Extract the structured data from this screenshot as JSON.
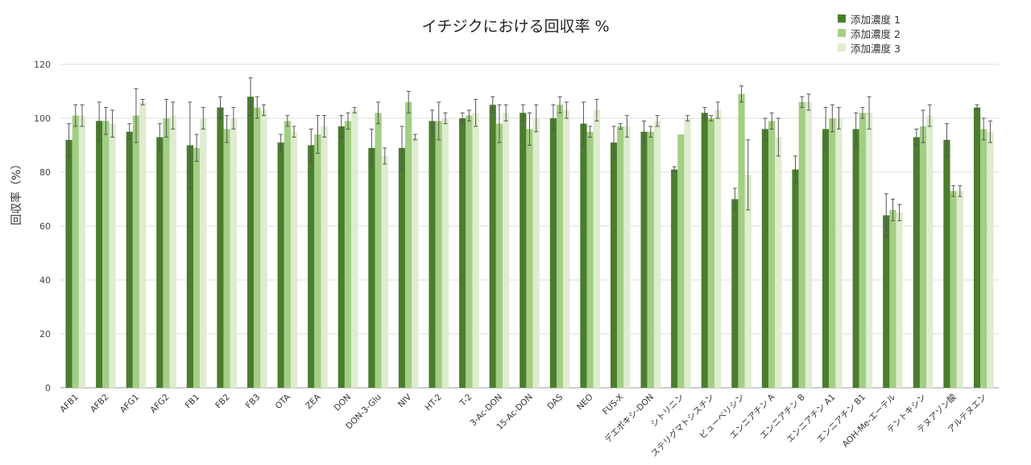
{
  "colors": {
    "series1": "#4a7d2e",
    "series2": "#a3cf84",
    "series3": "#dfeccf",
    "grid": "#dcdcdc",
    "axis": "#9a9a9a",
    "error": "#555555"
  },
  "chart_data": {
    "type": "bar",
    "title": "イチジクにおける回収率 %",
    "ylabel": "回収率（%）",
    "xlabel": "",
    "ylim": [
      0,
      120
    ],
    "yticks": [
      0,
      20,
      40,
      60,
      80,
      100,
      120
    ],
    "grid": true,
    "legend_position": "top-right",
    "categories": [
      "AFB1",
      "AFB2",
      "AFG1",
      "AFG2",
      "FB1",
      "FB2",
      "FB3",
      "OTA",
      "ZEA",
      "DON",
      "DON-3-Glu",
      "NIV",
      "HT-2",
      "T-2",
      "3-Ac-DON",
      "15-Ac-DON",
      "DAS",
      "NEO",
      "FUS-X",
      "デエポキシ-DON",
      "シトリニン",
      "ステリグマトシスチン",
      "ビューベリシン",
      "エンニアチン A",
      "エンニアチン B",
      "エンニアチン A1",
      "エンニアチン B1",
      "AOH-Me-エーテル",
      "テントキシン",
      "テヌアゾン酸",
      "アルテヌエン"
    ],
    "series": [
      {
        "name": "添加濃度 1",
        "values": [
          92,
          99,
          95,
          93,
          90,
          104,
          108,
          91,
          90,
          97,
          89,
          89,
          99,
          100,
          105,
          102,
          100,
          98,
          91,
          95,
          81,
          102,
          70,
          96,
          81,
          96,
          96,
          64,
          93,
          92,
          104
        ],
        "errors": [
          6,
          7,
          3,
          5,
          16,
          4,
          7,
          3,
          6,
          4,
          7,
          8,
          4,
          2,
          3,
          3,
          5,
          8,
          6,
          4,
          1,
          2,
          4,
          4,
          5,
          8,
          6,
          8,
          3,
          6,
          1
        ]
      },
      {
        "name": "添加濃度 2",
        "values": [
          101,
          99,
          101,
          100,
          89,
          96,
          104,
          99,
          94,
          99,
          102,
          106,
          99,
          101,
          98,
          96,
          105,
          95,
          97,
          95,
          94,
          100,
          109,
          99,
          106,
          100,
          102,
          66,
          97,
          73,
          96
        ],
        "errors": [
          4,
          5,
          10,
          7,
          5,
          5,
          4,
          2,
          7,
          3,
          4,
          4,
          7,
          2,
          7,
          6,
          3,
          2,
          1,
          2,
          0,
          1,
          3,
          3,
          2,
          5,
          2,
          4,
          6,
          2,
          4
        ]
      },
      {
        "name": "添加濃度 3",
        "values": [
          101,
          98,
          106,
          101,
          100,
          100,
          103,
          95,
          97,
          103,
          86,
          93,
          100,
          102,
          102,
          100,
          103,
          103,
          97,
          99,
          100,
          103,
          79,
          93,
          106,
          100,
          102,
          65,
          101,
          73,
          95
        ],
        "errors": [
          4,
          5,
          1,
          5,
          4,
          4,
          2,
          2,
          4,
          1,
          3,
          1,
          2,
          5,
          3,
          5,
          3,
          4,
          4,
          2,
          1,
          3,
          13,
          7,
          3,
          4,
          6,
          3,
          4,
          2,
          4
        ]
      }
    ]
  }
}
